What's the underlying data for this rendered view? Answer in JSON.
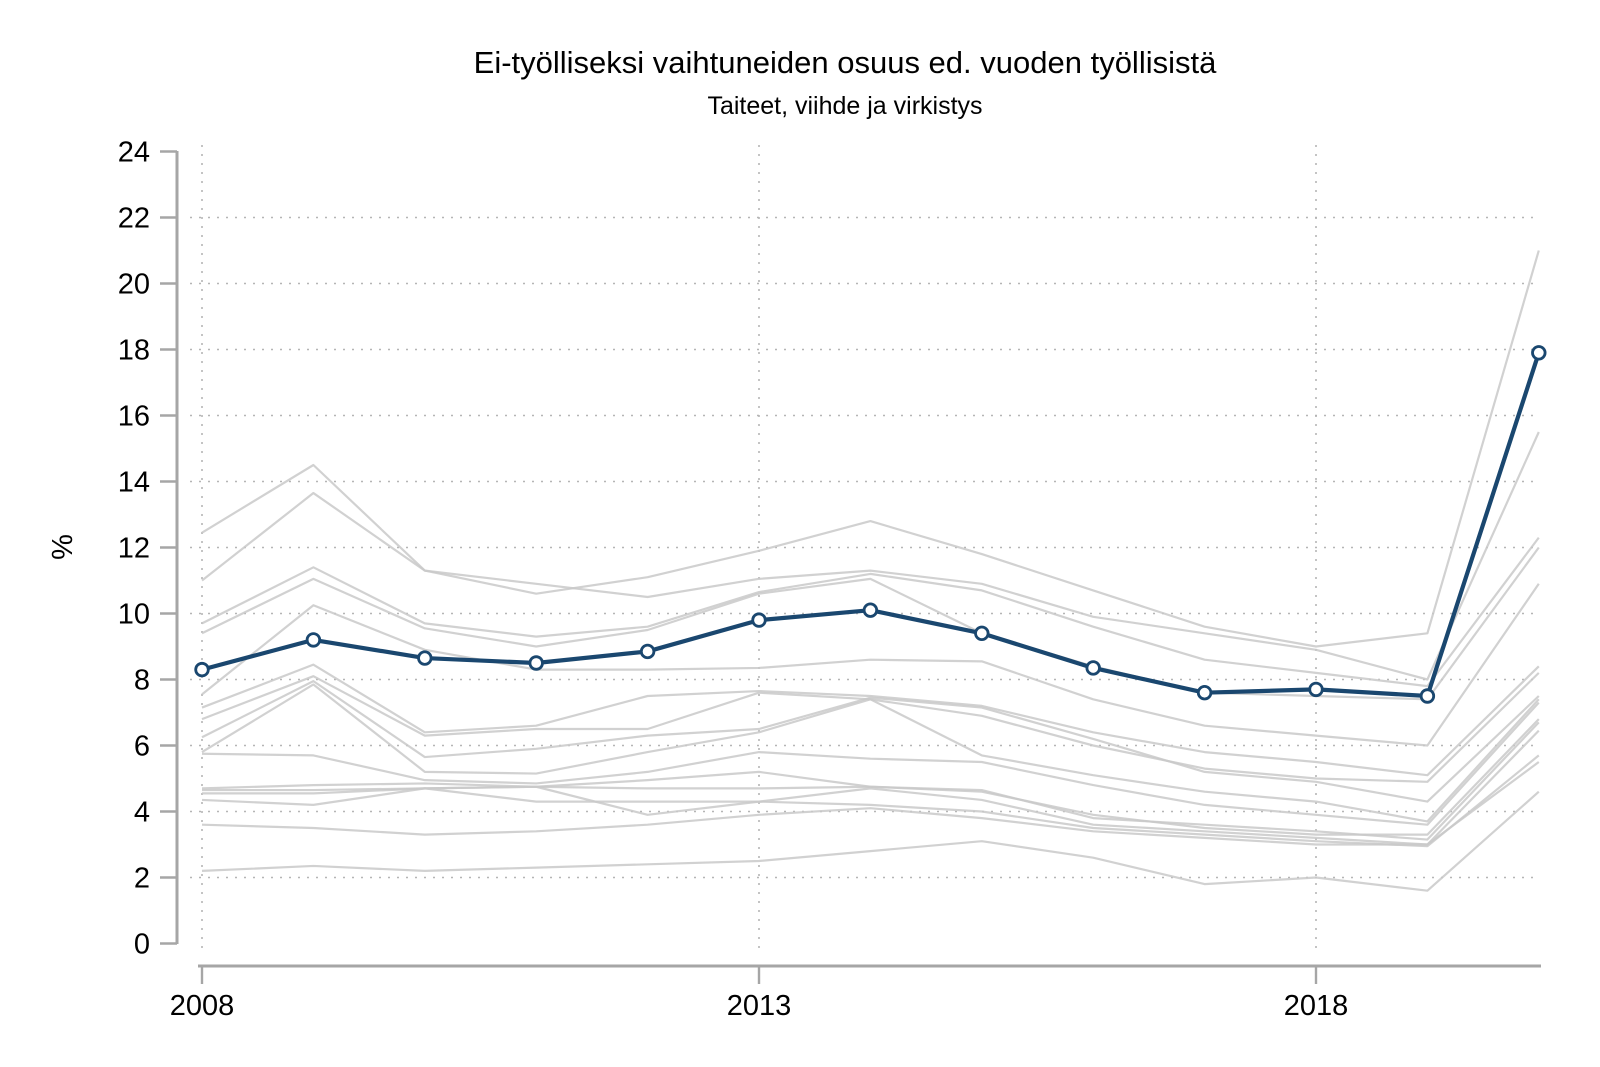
{
  "title": "Ei-työlliseksi vaihtuneiden osuus ed. vuoden työllisistä",
  "subtitle": "Taiteet, viihde ja virkistys",
  "chart_data": {
    "type": "line",
    "title": "Ei-työlliseksi vaihtuneiden osuus ed. vuoden työllisistä",
    "subtitle": "Taiteet, viihde ja virkistys",
    "xlabel": "",
    "ylabel": "%",
    "x": [
      2008,
      2009,
      2010,
      2011,
      2012,
      2013,
      2014,
      2015,
      2016,
      2017,
      2018,
      2019,
      2020
    ],
    "xticks": [
      2008,
      2013,
      2018
    ],
    "yticks": [
      0,
      2,
      4,
      6,
      8,
      10,
      12,
      14,
      16,
      18,
      20,
      22,
      24
    ],
    "ylim": [
      0,
      24
    ],
    "grid": "dotted horizontal gridlines at y=2..22, dotted vertical gridlines at x ticks",
    "legend": "none",
    "highlight_series": {
      "name": "Taiteet, viihde ja virkistys",
      "marker": "open-circle",
      "values": [
        8.3,
        9.2,
        8.65,
        8.5,
        8.85,
        9.8,
        10.1,
        9.4,
        8.35,
        7.6,
        7.7,
        7.5,
        17.9
      ]
    },
    "background_series": [
      {
        "name": "bg-01",
        "values": [
          12.45,
          14.5,
          11.3,
          10.6,
          11.1,
          11.9,
          12.8,
          11.8,
          10.7,
          9.6,
          9.0,
          9.4,
          21.0
        ]
      },
      {
        "name": "bg-02",
        "values": [
          11.0,
          13.65,
          11.3,
          10.9,
          10.5,
          11.05,
          11.3,
          10.9,
          9.9,
          9.4,
          8.9,
          8.0,
          15.5
        ]
      },
      {
        "name": "bg-03",
        "values": [
          9.7,
          11.4,
          9.7,
          9.3,
          9.6,
          10.65,
          11.2,
          10.7,
          9.6,
          8.6,
          8.2,
          7.8,
          12.3
        ]
      },
      {
        "name": "bg-04",
        "values": [
          9.4,
          11.05,
          9.55,
          9.0,
          9.5,
          10.6,
          11.05,
          9.4,
          8.4,
          7.6,
          7.5,
          7.4,
          12.0
        ]
      },
      {
        "name": "bg-05",
        "values": [
          7.55,
          10.25,
          8.9,
          8.3,
          8.3,
          8.35,
          8.6,
          8.55,
          7.4,
          6.6,
          6.3,
          6.0,
          10.9
        ]
      },
      {
        "name": "bg-06",
        "values": [
          7.15,
          8.45,
          6.4,
          6.6,
          7.5,
          7.65,
          7.5,
          7.2,
          6.4,
          5.8,
          5.5,
          5.1,
          8.4
        ]
      },
      {
        "name": "bg-07",
        "values": [
          6.8,
          8.1,
          6.3,
          6.5,
          6.5,
          7.6,
          7.4,
          6.9,
          6.0,
          5.3,
          5.0,
          4.9,
          8.2
        ]
      },
      {
        "name": "bg-08",
        "values": [
          6.25,
          7.95,
          5.65,
          5.9,
          6.3,
          6.5,
          7.45,
          7.15,
          6.2,
          5.2,
          4.9,
          4.3,
          7.5
        ]
      },
      {
        "name": "bg-09",
        "values": [
          5.8,
          7.85,
          5.2,
          5.15,
          5.8,
          6.4,
          7.4,
          5.7,
          5.1,
          4.6,
          4.3,
          3.7,
          7.4
        ]
      },
      {
        "name": "bg-10",
        "values": [
          5.75,
          5.7,
          4.95,
          4.85,
          5.2,
          5.8,
          5.6,
          5.5,
          4.8,
          4.2,
          3.9,
          3.6,
          7.3
        ]
      },
      {
        "name": "bg-11",
        "values": [
          4.7,
          4.8,
          4.85,
          4.75,
          4.95,
          5.2,
          4.75,
          4.6,
          3.9,
          3.5,
          3.3,
          3.3,
          6.8
        ]
      },
      {
        "name": "bg-12",
        "values": [
          4.65,
          4.65,
          4.7,
          4.75,
          4.7,
          4.7,
          4.75,
          4.65,
          3.8,
          3.6,
          3.4,
          3.15,
          6.7
        ]
      },
      {
        "name": "bg-13",
        "values": [
          4.55,
          4.55,
          4.7,
          4.3,
          4.3,
          4.3,
          4.7,
          4.35,
          3.6,
          3.4,
          3.2,
          3.0,
          6.45
        ]
      },
      {
        "name": "bg-14",
        "values": [
          4.35,
          4.2,
          4.7,
          4.75,
          3.9,
          4.3,
          4.2,
          4.0,
          3.5,
          3.3,
          3.1,
          2.95,
          5.7
        ]
      },
      {
        "name": "bg-15",
        "values": [
          3.6,
          3.5,
          3.3,
          3.4,
          3.6,
          3.9,
          4.1,
          3.8,
          3.4,
          3.2,
          3.0,
          3.0,
          5.5
        ]
      },
      {
        "name": "bg-16",
        "values": [
          2.2,
          2.35,
          2.2,
          2.3,
          2.4,
          2.5,
          2.8,
          3.1,
          2.6,
          1.8,
          2.0,
          1.6,
          4.6
        ]
      }
    ],
    "colors": {
      "highlight": "#1a476f",
      "marker_fill": "#ffffff",
      "background_line": "#c9c9c9",
      "axis": "#a6a6a6",
      "grid": "#b5b5b5",
      "text": "#000000"
    }
  }
}
